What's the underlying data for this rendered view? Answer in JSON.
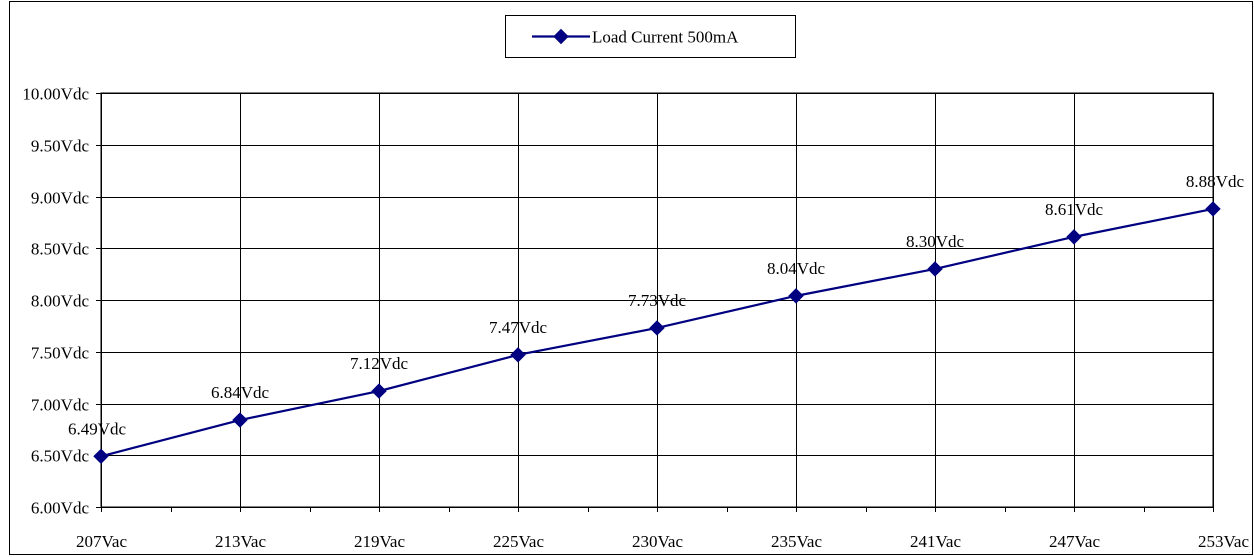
{
  "chart_data": {
    "type": "line",
    "categories": [
      "207Vac",
      "213Vac",
      "219Vac",
      "225Vac",
      "230Vac",
      "235Vac",
      "241Vac",
      "247Vac",
      "253Vac"
    ],
    "series": [
      {
        "name": "Load Current 500mA",
        "values": [
          6.49,
          6.84,
          7.12,
          7.47,
          7.73,
          8.04,
          8.3,
          8.61,
          8.88
        ],
        "data_labels": [
          "6.49Vdc",
          "6.84Vdc",
          "7.12Vdc",
          "7.47Vdc",
          "7.73Vdc",
          "8.04Vdc",
          "8.30Vdc",
          "8.61Vdc",
          "8.88Vdc"
        ],
        "color": "#000080",
        "marker": "diamond"
      }
    ],
    "yticks": [
      6.0,
      6.5,
      7.0,
      7.5,
      8.0,
      8.5,
      9.0,
      9.5,
      10.0
    ],
    "ytick_labels": [
      "6.00Vdc",
      "6.50Vdc",
      "7.00Vdc",
      "7.50Vdc",
      "8.00Vdc",
      "8.50Vdc",
      "9.00Vdc",
      "9.50Vdc",
      "10.00Vdc"
    ],
    "ylim": [
      6.0,
      10.0
    ],
    "grid": true,
    "legend_position": "top-center",
    "title": "",
    "xlabel": "",
    "ylabel": ""
  }
}
